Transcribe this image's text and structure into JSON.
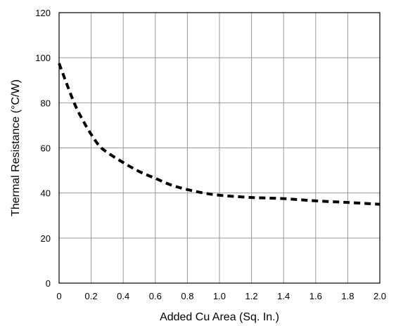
{
  "chart_data": {
    "type": "line",
    "title": "",
    "xlabel": "Added Cu Area (Sq. In.)",
    "ylabel": "Thermal Resistance (°C/W)",
    "xlim": [
      0,
      2.0
    ],
    "ylim": [
      0,
      120
    ],
    "x_ticks": [
      "0",
      "0.2",
      "0.4",
      "0.6",
      "0.8",
      "1.0",
      "1.2",
      "1.4",
      "1.6",
      "1.8",
      "2.0"
    ],
    "y_ticks": [
      "0",
      "20",
      "40",
      "60",
      "80",
      "100",
      "120"
    ],
    "grid": true,
    "line_style": "dashed",
    "line_color": "#000000",
    "series": [
      {
        "x": [
          0,
          0.05,
          0.1,
          0.15,
          0.2,
          0.25,
          0.3,
          0.4,
          0.5,
          0.6,
          0.7,
          0.8,
          0.9,
          1.0,
          1.2,
          1.4,
          1.6,
          1.8,
          2.0
        ],
        "values": [
          97.5,
          88,
          79,
          72,
          66,
          61,
          58,
          53.5,
          49.5,
          46.5,
          43.5,
          41.5,
          40,
          39,
          38,
          37.5,
          36.5,
          35.8,
          35
        ]
      }
    ]
  }
}
